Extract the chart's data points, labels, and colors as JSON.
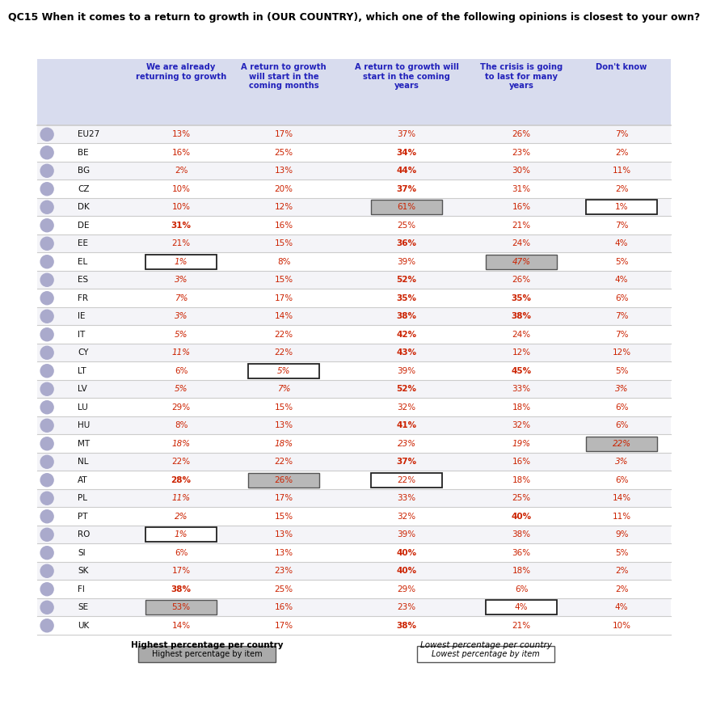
{
  "title": "QC15 When it comes to a return to growth in (OUR COUNTRY), which one of the following opinions is closest to your own?",
  "col_headers": [
    "We are already\nreturning to growth",
    "A return to growth\nwill start in the\ncoming months",
    "A return to growth will\nstart in the coming\nyears",
    "The crisis is going\nto last for many\nyears",
    "Don't know"
  ],
  "rows": [
    {
      "country": "EU27",
      "vals": [
        "13%",
        "17%",
        "37%",
        "26%",
        "7%"
      ],
      "bold": [
        false,
        false,
        false,
        false,
        false
      ],
      "italic": [
        false,
        false,
        false,
        false,
        false
      ],
      "box_dark": [
        false,
        false,
        false,
        false,
        false
      ],
      "box_light": [
        false,
        false,
        false,
        false,
        false
      ]
    },
    {
      "country": "BE",
      "vals": [
        "16%",
        "25%",
        "34%",
        "23%",
        "2%"
      ],
      "bold": [
        false,
        false,
        true,
        false,
        false
      ],
      "italic": [
        false,
        false,
        false,
        false,
        false
      ],
      "box_dark": [
        false,
        false,
        false,
        false,
        false
      ],
      "box_light": [
        false,
        false,
        false,
        false,
        false
      ]
    },
    {
      "country": "BG",
      "vals": [
        "2%",
        "13%",
        "44%",
        "30%",
        "11%"
      ],
      "bold": [
        false,
        false,
        true,
        false,
        false
      ],
      "italic": [
        false,
        false,
        false,
        false,
        false
      ],
      "box_dark": [
        false,
        false,
        false,
        false,
        false
      ],
      "box_light": [
        false,
        false,
        false,
        false,
        false
      ]
    },
    {
      "country": "CZ",
      "vals": [
        "10%",
        "20%",
        "37%",
        "31%",
        "2%"
      ],
      "bold": [
        false,
        false,
        true,
        false,
        false
      ],
      "italic": [
        false,
        false,
        false,
        false,
        false
      ],
      "box_dark": [
        false,
        false,
        false,
        false,
        false
      ],
      "box_light": [
        false,
        false,
        false,
        false,
        false
      ]
    },
    {
      "country": "DK",
      "vals": [
        "10%",
        "12%",
        "61%",
        "16%",
        "1%"
      ],
      "bold": [
        false,
        false,
        false,
        false,
        false
      ],
      "italic": [
        false,
        false,
        false,
        false,
        false
      ],
      "box_dark": [
        false,
        false,
        true,
        false,
        false
      ],
      "box_light": [
        false,
        false,
        false,
        false,
        true
      ]
    },
    {
      "country": "DE",
      "vals": [
        "31%",
        "16%",
        "25%",
        "21%",
        "7%"
      ],
      "bold": [
        true,
        false,
        false,
        false,
        false
      ],
      "italic": [
        false,
        false,
        false,
        false,
        false
      ],
      "box_dark": [
        false,
        false,
        false,
        false,
        false
      ],
      "box_light": [
        false,
        false,
        false,
        false,
        false
      ]
    },
    {
      "country": "EE",
      "vals": [
        "21%",
        "15%",
        "36%",
        "24%",
        "4%"
      ],
      "bold": [
        false,
        false,
        true,
        false,
        false
      ],
      "italic": [
        false,
        false,
        false,
        false,
        false
      ],
      "box_dark": [
        false,
        false,
        false,
        false,
        false
      ],
      "box_light": [
        false,
        false,
        false,
        false,
        false
      ]
    },
    {
      "country": "EL",
      "vals": [
        "1%",
        "8%",
        "39%",
        "47%",
        "5%"
      ],
      "bold": [
        false,
        false,
        false,
        false,
        false
      ],
      "italic": [
        true,
        false,
        false,
        true,
        false
      ],
      "box_dark": [
        false,
        false,
        false,
        true,
        false
      ],
      "box_light": [
        true,
        false,
        false,
        false,
        false
      ]
    },
    {
      "country": "ES",
      "vals": [
        "3%",
        "15%",
        "52%",
        "26%",
        "4%"
      ],
      "bold": [
        false,
        false,
        true,
        false,
        false
      ],
      "italic": [
        true,
        false,
        false,
        false,
        false
      ],
      "box_dark": [
        false,
        false,
        false,
        false,
        false
      ],
      "box_light": [
        false,
        false,
        false,
        false,
        false
      ]
    },
    {
      "country": "FR",
      "vals": [
        "7%",
        "17%",
        "35%",
        "35%",
        "6%"
      ],
      "bold": [
        false,
        false,
        true,
        true,
        false
      ],
      "italic": [
        true,
        false,
        false,
        false,
        false
      ],
      "box_dark": [
        false,
        false,
        false,
        false,
        false
      ],
      "box_light": [
        false,
        false,
        false,
        false,
        false
      ]
    },
    {
      "country": "IE",
      "vals": [
        "3%",
        "14%",
        "38%",
        "38%",
        "7%"
      ],
      "bold": [
        false,
        false,
        true,
        true,
        false
      ],
      "italic": [
        true,
        false,
        false,
        false,
        false
      ],
      "box_dark": [
        false,
        false,
        false,
        false,
        false
      ],
      "box_light": [
        false,
        false,
        false,
        false,
        false
      ]
    },
    {
      "country": "IT",
      "vals": [
        "5%",
        "22%",
        "42%",
        "24%",
        "7%"
      ],
      "bold": [
        false,
        false,
        true,
        false,
        false
      ],
      "italic": [
        true,
        false,
        false,
        false,
        false
      ],
      "box_dark": [
        false,
        false,
        false,
        false,
        false
      ],
      "box_light": [
        false,
        false,
        false,
        false,
        false
      ]
    },
    {
      "country": "CY",
      "vals": [
        "11%",
        "22%",
        "43%",
        "12%",
        "12%"
      ],
      "bold": [
        false,
        false,
        true,
        false,
        false
      ],
      "italic": [
        true,
        false,
        false,
        false,
        false
      ],
      "box_dark": [
        false,
        false,
        false,
        false,
        false
      ],
      "box_light": [
        false,
        false,
        false,
        false,
        false
      ]
    },
    {
      "country": "LT",
      "vals": [
        "6%",
        "5%",
        "39%",
        "45%",
        "5%"
      ],
      "bold": [
        false,
        false,
        false,
        true,
        false
      ],
      "italic": [
        false,
        true,
        false,
        false,
        false
      ],
      "box_dark": [
        false,
        false,
        false,
        false,
        false
      ],
      "box_light": [
        false,
        true,
        false,
        false,
        false
      ]
    },
    {
      "country": "LV",
      "vals": [
        "5%",
        "7%",
        "52%",
        "33%",
        "3%"
      ],
      "bold": [
        false,
        false,
        true,
        false,
        false
      ],
      "italic": [
        true,
        true,
        false,
        false,
        true
      ],
      "box_dark": [
        false,
        false,
        false,
        false,
        false
      ],
      "box_light": [
        false,
        false,
        false,
        false,
        false
      ]
    },
    {
      "country": "LU",
      "vals": [
        "29%",
        "15%",
        "32%",
        "18%",
        "6%"
      ],
      "bold": [
        false,
        false,
        false,
        false,
        false
      ],
      "italic": [
        false,
        false,
        false,
        false,
        false
      ],
      "box_dark": [
        false,
        false,
        false,
        false,
        false
      ],
      "box_light": [
        false,
        false,
        false,
        false,
        false
      ]
    },
    {
      "country": "HU",
      "vals": [
        "8%",
        "13%",
        "41%",
        "32%",
        "6%"
      ],
      "bold": [
        false,
        false,
        true,
        false,
        false
      ],
      "italic": [
        false,
        false,
        false,
        false,
        false
      ],
      "box_dark": [
        false,
        false,
        false,
        false,
        false
      ],
      "box_light": [
        false,
        false,
        false,
        false,
        false
      ]
    },
    {
      "country": "MT",
      "vals": [
        "18%",
        "18%",
        "23%",
        "19%",
        "22%"
      ],
      "bold": [
        false,
        false,
        false,
        false,
        false
      ],
      "italic": [
        true,
        true,
        true,
        true,
        true
      ],
      "box_dark": [
        false,
        false,
        false,
        false,
        true
      ],
      "box_light": [
        false,
        false,
        false,
        false,
        false
      ]
    },
    {
      "country": "NL",
      "vals": [
        "22%",
        "22%",
        "37%",
        "16%",
        "3%"
      ],
      "bold": [
        false,
        false,
        true,
        false,
        false
      ],
      "italic": [
        false,
        false,
        false,
        false,
        true
      ],
      "box_dark": [
        false,
        false,
        false,
        false,
        false
      ],
      "box_light": [
        false,
        false,
        false,
        false,
        false
      ]
    },
    {
      "country": "AT",
      "vals": [
        "28%",
        "26%",
        "22%",
        "18%",
        "6%"
      ],
      "bold": [
        true,
        false,
        false,
        false,
        false
      ],
      "italic": [
        false,
        false,
        false,
        false,
        false
      ],
      "box_dark": [
        false,
        true,
        false,
        false,
        false
      ],
      "box_light": [
        false,
        false,
        true,
        false,
        false
      ]
    },
    {
      "country": "PL",
      "vals": [
        "11%",
        "17%",
        "33%",
        "25%",
        "14%"
      ],
      "bold": [
        false,
        false,
        false,
        false,
        false
      ],
      "italic": [
        true,
        false,
        false,
        false,
        false
      ],
      "box_dark": [
        false,
        false,
        false,
        false,
        false
      ],
      "box_light": [
        false,
        false,
        false,
        false,
        false
      ]
    },
    {
      "country": "PT",
      "vals": [
        "2%",
        "15%",
        "32%",
        "40%",
        "11%"
      ],
      "bold": [
        false,
        false,
        false,
        true,
        false
      ],
      "italic": [
        true,
        false,
        false,
        false,
        false
      ],
      "box_dark": [
        false,
        false,
        false,
        false,
        false
      ],
      "box_light": [
        false,
        false,
        false,
        false,
        false
      ]
    },
    {
      "country": "RO",
      "vals": [
        "1%",
        "13%",
        "39%",
        "38%",
        "9%"
      ],
      "bold": [
        false,
        false,
        false,
        false,
        false
      ],
      "italic": [
        true,
        false,
        false,
        false,
        false
      ],
      "box_dark": [
        false,
        false,
        false,
        false,
        false
      ],
      "box_light": [
        true,
        false,
        false,
        false,
        false
      ]
    },
    {
      "country": "SI",
      "vals": [
        "6%",
        "13%",
        "40%",
        "36%",
        "5%"
      ],
      "bold": [
        false,
        false,
        true,
        false,
        false
      ],
      "italic": [
        false,
        false,
        false,
        false,
        false
      ],
      "box_dark": [
        false,
        false,
        false,
        false,
        false
      ],
      "box_light": [
        false,
        false,
        false,
        false,
        false
      ]
    },
    {
      "country": "SK",
      "vals": [
        "17%",
        "23%",
        "40%",
        "18%",
        "2%"
      ],
      "bold": [
        false,
        false,
        true,
        false,
        false
      ],
      "italic": [
        false,
        false,
        false,
        false,
        false
      ],
      "box_dark": [
        false,
        false,
        false,
        false,
        false
      ],
      "box_light": [
        false,
        false,
        false,
        false,
        false
      ]
    },
    {
      "country": "FI",
      "vals": [
        "38%",
        "25%",
        "29%",
        "6%",
        "2%"
      ],
      "bold": [
        true,
        false,
        false,
        false,
        false
      ],
      "italic": [
        false,
        false,
        false,
        false,
        false
      ],
      "box_dark": [
        false,
        false,
        false,
        false,
        false
      ],
      "box_light": [
        false,
        false,
        false,
        false,
        false
      ]
    },
    {
      "country": "SE",
      "vals": [
        "53%",
        "16%",
        "23%",
        "4%",
        "4%"
      ],
      "bold": [
        false,
        false,
        false,
        false,
        false
      ],
      "italic": [
        false,
        false,
        false,
        false,
        false
      ],
      "box_dark": [
        true,
        false,
        false,
        false,
        false
      ],
      "box_light": [
        false,
        false,
        false,
        true,
        false
      ]
    },
    {
      "country": "UK",
      "vals": [
        "14%",
        "17%",
        "38%",
        "21%",
        "10%"
      ],
      "bold": [
        false,
        false,
        true,
        false,
        false
      ],
      "italic": [
        false,
        false,
        false,
        false,
        false
      ],
      "box_dark": [
        false,
        false,
        false,
        false,
        false
      ],
      "box_light": [
        false,
        false,
        false,
        false,
        false
      ]
    }
  ],
  "footer_left_bold": "Highest percentage per country",
  "footer_right_italic": "Lowest percentage per country",
  "footer_left_sub": "Highest percentage by item",
  "footer_right_sub": "Lowest percentage by item",
  "header_bg": "#d8dcee",
  "box_dark_fill": "#b8b8b8",
  "box_dark_edge": "#555555",
  "box_light_fill": "#ffffff",
  "box_light_edge": "#222222",
  "title_color": "#000000",
  "header_text_color": "#2222bb",
  "data_text_color": "#cc2200",
  "country_text_color": "#111111",
  "footer_dark_fill": "#aaaaaa",
  "footer_light_fill": "#ffffff",
  "footer_edge": "#555555"
}
